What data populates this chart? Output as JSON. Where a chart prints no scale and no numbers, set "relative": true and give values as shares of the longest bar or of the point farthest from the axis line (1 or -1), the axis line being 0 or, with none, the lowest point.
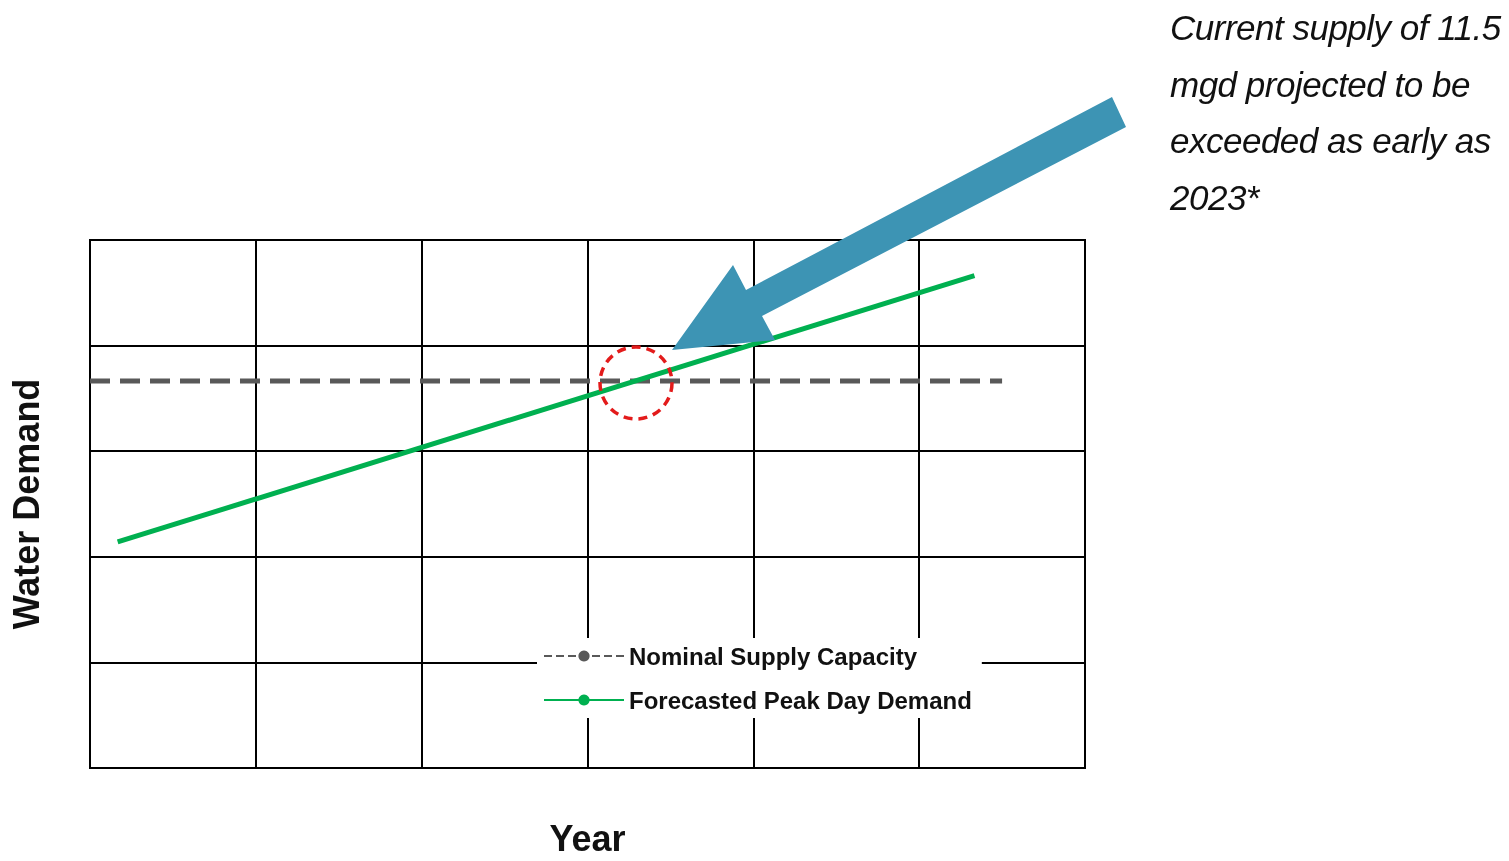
{
  "chart_data": {
    "type": "line",
    "relative": true,
    "xlabel": "Year",
    "ylabel": "Water Demand",
    "categories": [
      null,
      null,
      null,
      null,
      null,
      null,
      null,
      null,
      null,
      null,
      null,
      null,
      null,
      null,
      null,
      null,
      null,
      null,
      null,
      null,
      null,
      null,
      null,
      null,
      null,
      null,
      null,
      null,
      null,
      null,
      null,
      null,
      null,
      null,
      null,
      null,
      null
    ],
    "series": [
      {
        "name": "Nominal Supply Capacity",
        "color": "#595959",
        "line_style": "dashed",
        "values": [
          0.786,
          null,
          null,
          null,
          null,
          null,
          null,
          null,
          null,
          null,
          null,
          null,
          null,
          null,
          null,
          null,
          null,
          null,
          null,
          null,
          null,
          null,
          null,
          null,
          null,
          null,
          null,
          null,
          null,
          null,
          null,
          null,
          null,
          0.786,
          null,
          null,
          null
        ]
      },
      {
        "name": "Forecasted Peak Day Demand",
        "color": "#00b050",
        "line_style": "solid",
        "values": [
          null,
          0.459,
          null,
          null,
          null,
          null,
          null,
          null,
          null,
          null,
          null,
          null,
          null,
          null,
          null,
          null,
          null,
          null,
          null,
          null,
          null,
          null,
          null,
          null,
          null,
          null,
          null,
          null,
          null,
          null,
          null,
          null,
          1,
          null,
          null,
          null,
          null
        ]
      }
    ],
    "grid": true,
    "legend": "bottom",
    "marker": "none",
    "annotations": [
      "Current supply of 11.5 mgd projected to be exceeded as early as 2023*"
    ]
  }
}
